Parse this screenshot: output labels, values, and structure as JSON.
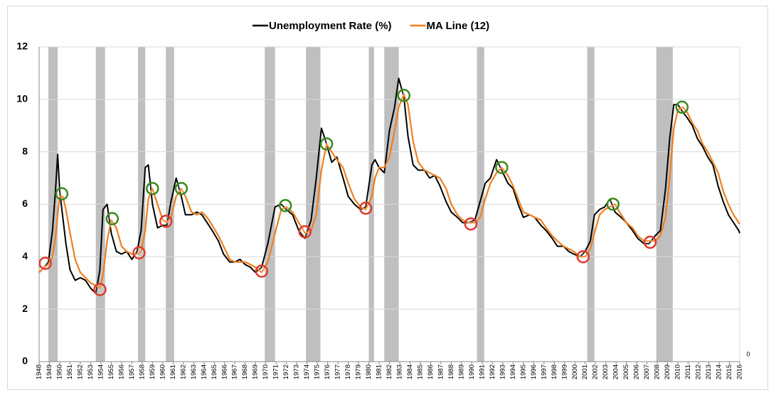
{
  "chart_data": {
    "type": "line",
    "series": [
      {
        "name": "Unemployment Rate (%)",
        "color": "#000000",
        "values": [
          3.4,
          3.6,
          3.8,
          5.0,
          6.6,
          7.9,
          6.5,
          5.5,
          4.5,
          3.5,
          3.1,
          3.2,
          3.1,
          2.8,
          2.6,
          3.5,
          5.8,
          6.0,
          4.9,
          4.2,
          4.1,
          4.2,
          3.9,
          4.2,
          5.0,
          7.4,
          7.5,
          6.0,
          5.1,
          5.2,
          5.2,
          6.1,
          7.0,
          6.3,
          5.6,
          5.6,
          5.7,
          5.6,
          5.3,
          5.0,
          4.6,
          4.1,
          3.8,
          3.8,
          3.9,
          3.7,
          3.6,
          3.4,
          3.6,
          4.5,
          5.9,
          6.0,
          5.8,
          5.6,
          5.0,
          4.7,
          5.4,
          7.0,
          8.9,
          8.3,
          7.6,
          7.8,
          7.0,
          6.3,
          6.0,
          5.8,
          5.9,
          7.5,
          7.7,
          7.4,
          7.2,
          8.8,
          9.7,
          10.8,
          10.1,
          8.6,
          7.5,
          7.3,
          7.3,
          7.0,
          7.1,
          6.7,
          6.1,
          5.7,
          5.5,
          5.3,
          5.3,
          5.4,
          6.1,
          6.8,
          7.0,
          7.7,
          7.3,
          6.8,
          6.6,
          6.0,
          5.5,
          5.6,
          5.5,
          5.2,
          5.0,
          4.7,
          4.4,
          4.4,
          4.2,
          4.1,
          4.0,
          4.2,
          4.6,
          5.6,
          5.8,
          5.9,
          6.2,
          5.7,
          5.5,
          5.3,
          5.0,
          4.7,
          4.5,
          4.5,
          4.8,
          5.0,
          6.6,
          8.5,
          9.8,
          9.8,
          9.5,
          9.3,
          9.0,
          8.5,
          8.2,
          7.8,
          7.5,
          6.7,
          6.1,
          5.6,
          5.3,
          5.0,
          4.9
        ]
      },
      {
        "name": "MA Line (12)",
        "color": "#f07f1e",
        "values": [
          3.4,
          3.6,
          3.7,
          4.0,
          4.8,
          5.6,
          6.3,
          6.3,
          5.8,
          4.9,
          3.9,
          3.4,
          3.2,
          3.0,
          2.9,
          2.8,
          3.3,
          4.6,
          5.4,
          5.1,
          4.4,
          4.2,
          4.1,
          4.1,
          4.2,
          5.0,
          6.2,
          6.6,
          6.0,
          5.4,
          5.3,
          5.5,
          6.3,
          6.6,
          6.3,
          5.7,
          5.6,
          5.7,
          5.5,
          5.2,
          4.8,
          4.4,
          3.9,
          3.8,
          3.8,
          3.8,
          3.7,
          3.6,
          3.4,
          3.8,
          4.9,
          5.8,
          5.9,
          5.7,
          5.3,
          4.9,
          5.0,
          5.6,
          7.3,
          8.3,
          8.0,
          7.7,
          7.4,
          6.8,
          6.2,
          5.9,
          5.8,
          6.3,
          7.0,
          7.4,
          7.4,
          7.8,
          8.8,
          9.7,
          10.2,
          9.8,
          8.4,
          7.6,
          7.3,
          7.2,
          7.1,
          7.0,
          6.6,
          6.0,
          5.6,
          5.4,
          5.3,
          5.3,
          5.5,
          6.2,
          6.8,
          7.2,
          7.4,
          7.1,
          6.7,
          6.2,
          5.7,
          5.6,
          5.5,
          5.4,
          5.1,
          4.8,
          4.6,
          4.4,
          4.3,
          4.2,
          4.0,
          4.0,
          4.3,
          4.9,
          5.6,
          5.8,
          5.9,
          6.0,
          5.6,
          5.3,
          5.1,
          4.8,
          4.6,
          4.6,
          4.6,
          4.8,
          5.5,
          7.0,
          8.9,
          9.6,
          9.7,
          9.5,
          9.1,
          8.8,
          8.3,
          8.0,
          7.6,
          7.2,
          6.5,
          6.0,
          5.6,
          5.3,
          5.25
        ]
      }
    ],
    "x": [
      1948.0,
      1948.5,
      1948.9,
      1949.3,
      1949.6,
      1949.8,
      1950.0,
      1950.3,
      1950.6,
      1951.0,
      1951.5,
      1952.0,
      1952.5,
      1953.0,
      1953.5,
      1953.9,
      1954.2,
      1954.6,
      1955.0,
      1955.5,
      1956.0,
      1956.5,
      1957.0,
      1957.5,
      1957.9,
      1958.3,
      1958.6,
      1959.0,
      1959.5,
      1960.0,
      1960.4,
      1960.8,
      1961.3,
      1961.8,
      1962.2,
      1962.8,
      1963.3,
      1963.8,
      1964.3,
      1964.8,
      1965.4,
      1965.9,
      1966.5,
      1967.0,
      1967.5,
      1968.0,
      1968.5,
      1969.0,
      1969.6,
      1970.2,
      1970.9,
      1971.5,
      1972.0,
      1972.6,
      1973.2,
      1973.8,
      1974.4,
      1974.9,
      1975.4,
      1975.9,
      1976.4,
      1976.9,
      1977.5,
      1978.0,
      1978.6,
      1979.2,
      1979.7,
      1980.3,
      1980.6,
      1981.0,
      1981.5,
      1982.0,
      1982.5,
      1982.9,
      1983.4,
      1983.8,
      1984.3,
      1984.8,
      1985.4,
      1985.9,
      1986.4,
      1986.9,
      1987.5,
      1988.0,
      1988.6,
      1989.1,
      1989.7,
      1990.3,
      1990.8,
      1991.3,
      1991.8,
      1992.4,
      1992.9,
      1993.5,
      1994.0,
      1994.5,
      1995.0,
      1995.6,
      1996.1,
      1996.7,
      1997.2,
      1997.8,
      1998.3,
      1998.9,
      1999.4,
      1999.9,
      2000.5,
      2001.0,
      2001.5,
      2001.9,
      2002.4,
      2002.9,
      2003.4,
      2003.9,
      2004.5,
      2005.0,
      2005.6,
      2006.1,
      2006.7,
      2007.2,
      2007.8,
      2008.3,
      2008.8,
      2009.2,
      2009.6,
      2010.0,
      2010.5,
      2010.9,
      2011.4,
      2011.9,
      2012.4,
      2012.9,
      2013.4,
      2013.9,
      2014.4,
      2014.9,
      2015.4,
      2015.9,
      2016.0
    ],
    "xlim": [
      1948,
      2016
    ],
    "xticks": [
      1948,
      1949,
      1950,
      1951,
      1952,
      1953,
      1954,
      1955,
      1956,
      1957,
      1958,
      1959,
      1960,
      1961,
      1962,
      1963,
      1964,
      1965,
      1966,
      1967,
      1968,
      1969,
      1970,
      1971,
      1972,
      1973,
      1974,
      1975,
      1976,
      1977,
      1978,
      1979,
      1980,
      1981,
      1982,
      1983,
      1984,
      1985,
      1986,
      1987,
      1988,
      1989,
      1990,
      1991,
      1992,
      1993,
      1994,
      1995,
      1996,
      1997,
      1998,
      1999,
      2000,
      2001,
      2002,
      2003,
      2004,
      2005,
      2006,
      2007,
      2008,
      2009,
      2010,
      2011,
      2012,
      2013,
      2014,
      2015,
      2016
    ],
    "ylim": [
      0,
      12
    ],
    "yticks": [
      0,
      2,
      4,
      6,
      8,
      10,
      12
    ],
    "grid": true,
    "y2ticks": [
      0
    ],
    "legend": "top",
    "recession_color": "#bfbfbf",
    "recessions": [
      {
        "start": 1948.9,
        "end": 1949.8
      },
      {
        "start": 1953.5,
        "end": 1954.4
      },
      {
        "start": 1957.6,
        "end": 1958.3
      },
      {
        "start": 1960.3,
        "end": 1961.1
      },
      {
        "start": 1969.9,
        "end": 1970.9
      },
      {
        "start": 1973.9,
        "end": 1975.3
      },
      {
        "start": 1980.0,
        "end": 1980.5
      },
      {
        "start": 1981.5,
        "end": 1982.9
      },
      {
        "start": 1990.5,
        "end": 1991.2
      },
      {
        "start": 2001.2,
        "end": 2001.9
      },
      {
        "start": 2007.9,
        "end": 2009.5
      }
    ],
    "markers": [
      {
        "x": 1948.6,
        "y": 3.75,
        "color": "#e0392b"
      },
      {
        "x": 1950.2,
        "y": 6.4,
        "color": "#3a8a1f"
      },
      {
        "x": 1953.9,
        "y": 2.75,
        "color": "#e0392b"
      },
      {
        "x": 1955.1,
        "y": 5.45,
        "color": "#3a8a1f"
      },
      {
        "x": 1957.7,
        "y": 4.15,
        "color": "#e0392b"
      },
      {
        "x": 1959.0,
        "y": 6.6,
        "color": "#3a8a1f"
      },
      {
        "x": 1960.3,
        "y": 5.35,
        "color": "#e0392b"
      },
      {
        "x": 1961.8,
        "y": 6.6,
        "color": "#3a8a1f"
      },
      {
        "x": 1969.6,
        "y": 3.45,
        "color": "#e0392b"
      },
      {
        "x": 1971.9,
        "y": 5.95,
        "color": "#3a8a1f"
      },
      {
        "x": 1973.8,
        "y": 4.95,
        "color": "#e0392b"
      },
      {
        "x": 1975.9,
        "y": 8.3,
        "color": "#3a8a1f"
      },
      {
        "x": 1979.7,
        "y": 5.85,
        "color": "#e0392b"
      },
      {
        "x": 1983.4,
        "y": 10.15,
        "color": "#3a8a1f"
      },
      {
        "x": 1989.9,
        "y": 5.25,
        "color": "#e0392b"
      },
      {
        "x": 1992.9,
        "y": 7.4,
        "color": "#3a8a1f"
      },
      {
        "x": 2000.8,
        "y": 4.0,
        "color": "#e0392b"
      },
      {
        "x": 2003.7,
        "y": 6.0,
        "color": "#3a8a1f"
      },
      {
        "x": 2007.3,
        "y": 4.55,
        "color": "#e0392b"
      },
      {
        "x": 2010.4,
        "y": 9.7,
        "color": "#3a8a1f"
      }
    ]
  }
}
